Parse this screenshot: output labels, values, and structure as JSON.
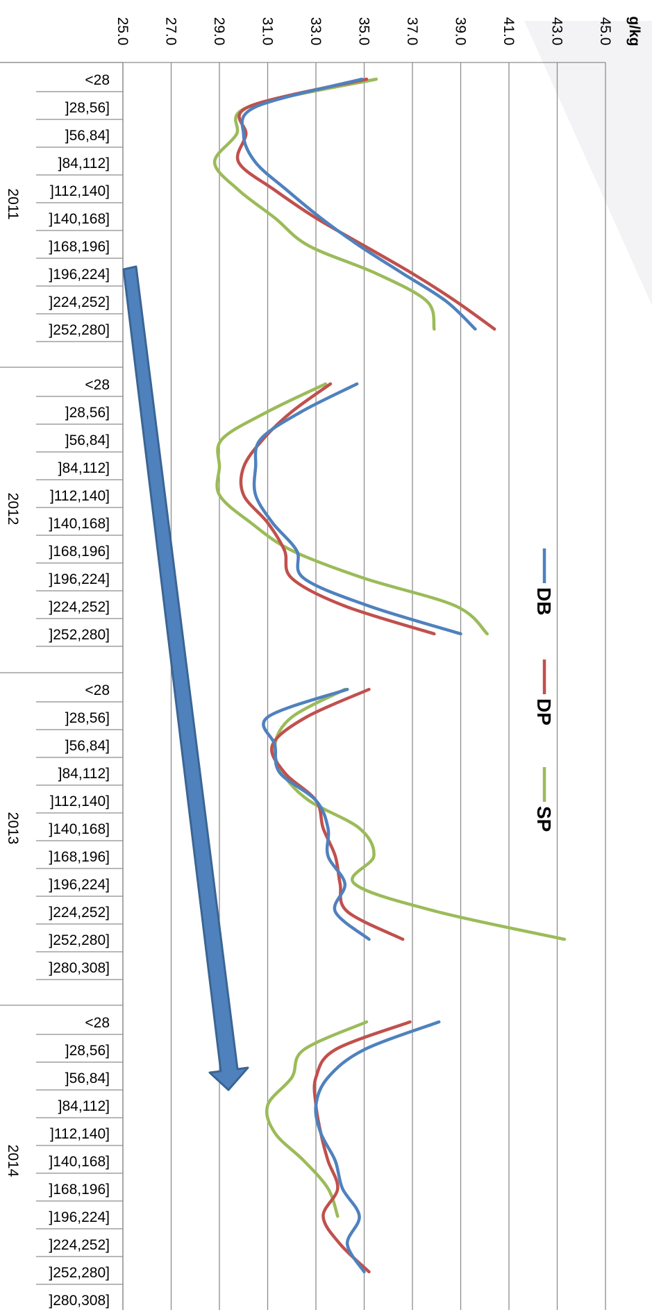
{
  "chart_data": {
    "type": "line",
    "orientation": "rotated-90-clockwise",
    "unit": "g/kg",
    "ylim": [
      25.0,
      45.0
    ],
    "y_ticks": [
      "25.0",
      "27.0",
      "29.0",
      "31.0",
      "33.0",
      "35.0",
      "37.0",
      "39.0",
      "41.0",
      "43.0",
      "45.0"
    ],
    "grid": true,
    "legend_position": "right",
    "groups": [
      {
        "year": "2011",
        "categories": [
          "<28",
          "]28,56]",
          "]56,84]",
          "]84,112]",
          "]112,140]",
          "]140,168]",
          "]168,196]",
          "]196,224]",
          "]224,252]",
          "]252,280]"
        ],
        "series": [
          {
            "name": "DB",
            "values": [
              34.9,
              30.5,
              30.0,
              30.5,
              31.8,
              33.2,
              34.8,
              36.6,
              38.4,
              39.6
            ]
          },
          {
            "name": "DP",
            "values": [
              35.1,
              30.2,
              30.1,
              29.8,
              31.3,
              33.0,
              35.0,
              37.0,
              38.8,
              40.4
            ]
          },
          {
            "name": "SP",
            "values": [
              35.5,
              30.2,
              29.7,
              28.8,
              29.8,
              31.3,
              32.7,
              35.5,
              37.6,
              37.9
            ]
          }
        ]
      },
      {
        "year": "2012",
        "categories": [
          "<28",
          "]28,56]",
          "]56,84]",
          "]84,112]",
          "]112,140]",
          "]140,168]",
          "]168,196]",
          "]196,224]",
          "]224,252]",
          "]252,280]"
        ],
        "series": [
          {
            "name": "DB",
            "values": [
              34.7,
              32.4,
              30.7,
              30.5,
              30.5,
              31.2,
              32.2,
              32.5,
              35.2,
              39.0
            ]
          },
          {
            "name": "DP",
            "values": [
              33.6,
              32.0,
              30.8,
              30.0,
              30.0,
              31.0,
              31.7,
              32.0,
              34.2,
              37.9
            ]
          },
          {
            "name": "SP",
            "values": [
              33.4,
              31.0,
              29.1,
              29.0,
              29.0,
              30.3,
              32.0,
              35.0,
              38.8,
              40.1
            ]
          }
        ]
      },
      {
        "year": "2013",
        "categories": [
          "<28",
          "]28,56]",
          "]56,84]",
          "]84,112]",
          "]112,140]",
          "]140,168]",
          "]168,196]",
          "]196,224]",
          "]224,252]",
          "]252,280]",
          "]280,308]"
        ],
        "series": [
          {
            "name": "DB",
            "values": [
              34.3,
              31.0,
              31.3,
              31.5,
              33.0,
              33.5,
              33.5,
              34.2,
              33.8,
              35.2
            ]
          },
          {
            "name": "DP",
            "values": [
              35.2,
              32.6,
              31.2,
              31.7,
              33.0,
              33.3,
              33.8,
              34.0,
              34.3,
              36.6
            ]
          },
          {
            "name": "SP",
            "values": [
              34.2,
              32.0,
              31.3,
              31.6,
              32.7,
              34.8,
              35.4,
              34.6,
              38.0,
              43.3
            ]
          }
        ]
      },
      {
        "year": "2014",
        "categories": [
          "<28",
          "]28,56]",
          "]56,84]",
          "]84,112]",
          "]112,140]",
          "]140,168]",
          "]168,196]",
          "]196,224]",
          "]224,252]",
          "]252,280]",
          "]280,308]"
        ],
        "series": [
          {
            "name": "DB",
            "values": [
              38.1,
              35.0,
              33.5,
              33.0,
              33.2,
              33.8,
              34.1,
              34.8,
              34.3,
              35.0
            ]
          },
          {
            "name": "DP",
            "values": [
              36.9,
              33.8,
              33.0,
              33.0,
              33.2,
              33.5,
              33.9,
              33.3,
              34.0,
              35.2
            ]
          },
          {
            "name": "SP",
            "values": [
              35.1,
              32.5,
              32.0,
              31.0,
              31.3,
              32.5,
              33.5,
              33.9
            ]
          }
        ]
      }
    ],
    "legend": [
      {
        "name": "DB",
        "color": "#4f81bd"
      },
      {
        "name": "DP",
        "color": "#c0504d"
      },
      {
        "name": "SP",
        "color": "#9bbb59"
      }
    ]
  },
  "colors": {
    "DB": "#4f81bd",
    "DP": "#c0504d",
    "SP": "#9bbb59",
    "arrow": "#4f81bd",
    "grid": "#8c8c8c"
  }
}
